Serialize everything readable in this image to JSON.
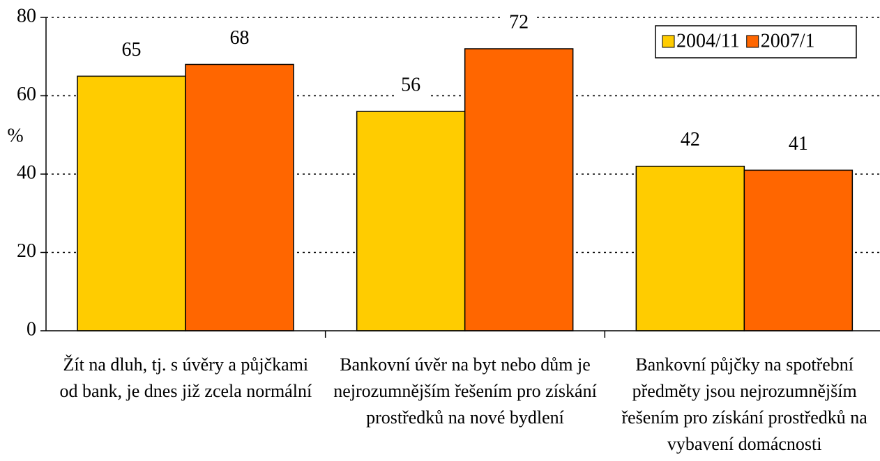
{
  "chart_data": {
    "type": "bar",
    "y_label": "%",
    "categories": [
      "Žít na dluh, tj. s úvěry a půjčkami od bank, je dnes již zcela normální",
      "Bankovní úvěr na byt nebo dům je nejrozumnějším řešením pro získání prostředků na nové bydlení",
      "Bankovní půjčky na spotřební předměty jsou nejrozumnějším řešením pro získání prostředků na vybavení domácnosti"
    ],
    "series": [
      {
        "name": "2004/11",
        "color": "#ffcc00",
        "values": [
          65,
          56,
          42
        ]
      },
      {
        "name": "2007/1",
        "color": "#ff6600",
        "values": [
          68,
          72,
          41
        ]
      }
    ],
    "ylim": [
      0,
      80
    ],
    "yticks": [
      0,
      20,
      40,
      60,
      80
    ],
    "grid": true,
    "legend": "top-right"
  }
}
